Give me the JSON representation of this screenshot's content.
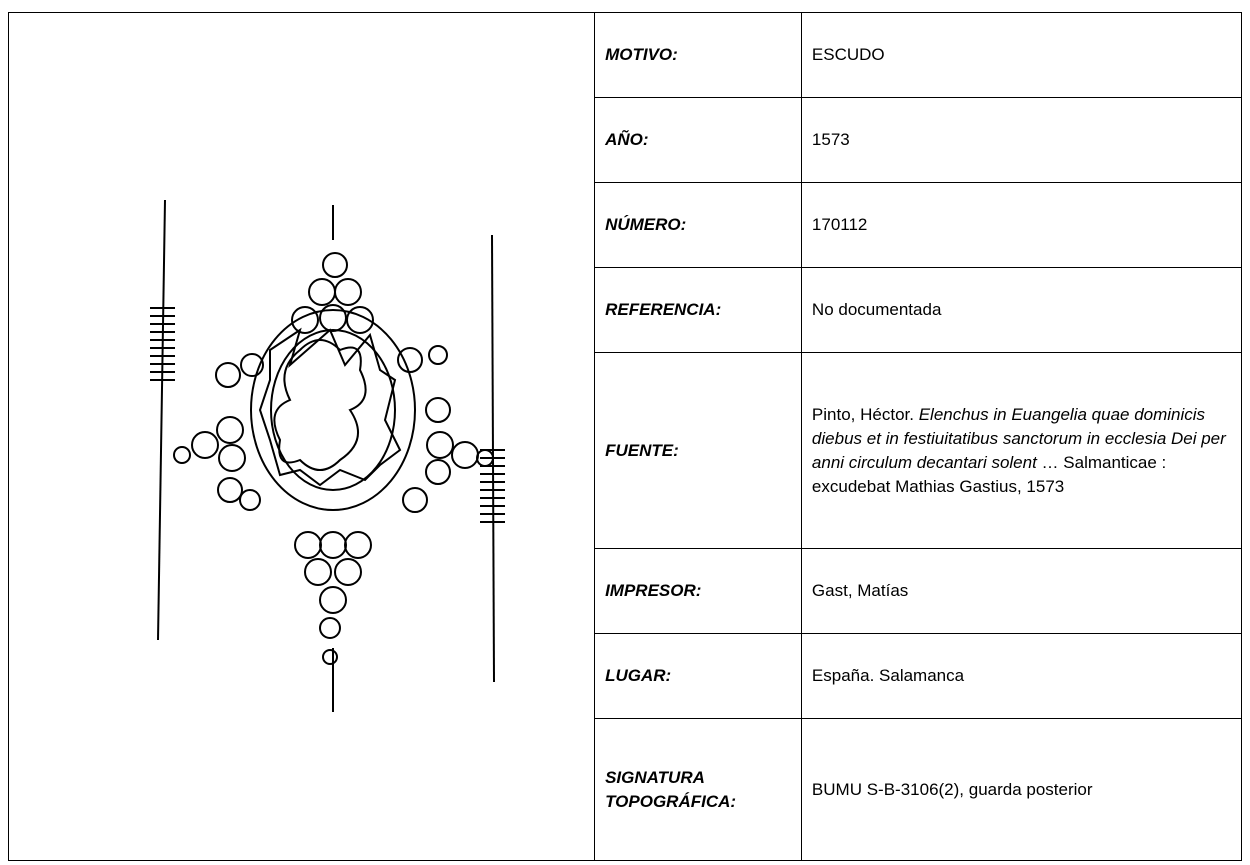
{
  "rows": [
    {
      "label": "MOTIVO:",
      "value": "ESCUDO"
    },
    {
      "label": "AÑO:",
      "value": "1573"
    },
    {
      "label": "NÚMERO:",
      "value": "170112"
    },
    {
      "label": "REFERENCIA:",
      "value": "No documentada"
    },
    {
      "label": "FUENTE:",
      "value": [
        {
          "text": "Pinto, Héctor. ",
          "italic": false
        },
        {
          "text": "Elenchus in Euangelia quae dominicis diebus et in festiuitatibus sanctorum in ecclesia Dei per anni circulum decantari solent",
          "italic": true
        },
        {
          "text": " … Salmanticae : excudebat Mathias Gastius, 1573",
          "italic": false
        }
      ]
    },
    {
      "label": "IMPRESOR:",
      "value": "Gast, Matías"
    },
    {
      "label": "LUGAR:",
      "value": "España. Salamanca"
    },
    {
      "label": "SIGNATURA TOPOGRÁFICA:",
      "value": "BUMU S-B-3106(2), guarda posterior"
    }
  ]
}
